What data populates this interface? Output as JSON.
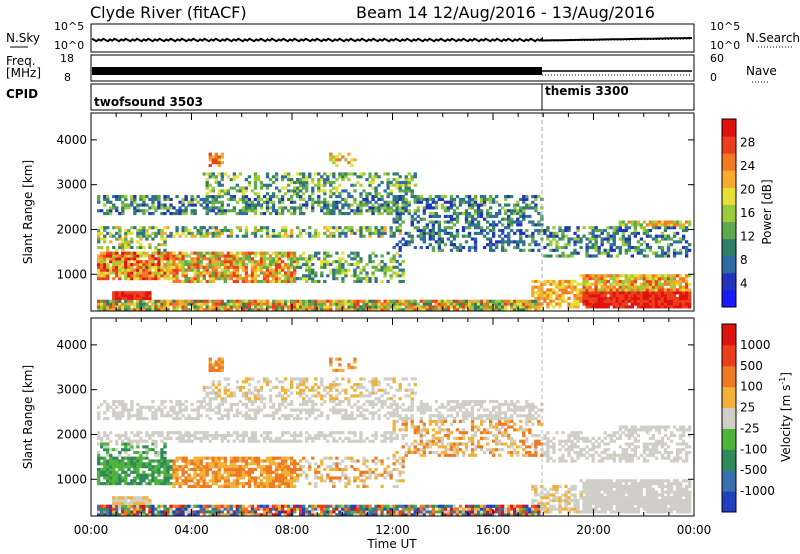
{
  "header": {
    "station": "Clyde River (fitACF)",
    "beam_date": "Beam 14  12/Aug/2016 - 13/Aug/2016"
  },
  "top_panels": {
    "nsky_label": "N.Sky",
    "nsky_tick_top": "10^5",
    "nsky_tick_bottom": "10^0",
    "nsearch_label": "N.Search",
    "nsearch_tick_top": "10^5",
    "nsearch_tick_bottom": "10^0",
    "freq_label_1": "Freq.",
    "freq_label_2": "[MHz]",
    "freq_tick_top": "18",
    "freq_tick_bottom": "8",
    "nave_label": "Nave",
    "nave_tick_top": "60",
    "nave_tick_bottom": "0",
    "cpid_label": "CPID",
    "cpid_segments": [
      {
        "name": "twofsound 3503",
        "start_hour": 0,
        "end_hour": 18.0
      },
      {
        "name": "themis 3300",
        "start_hour": 18.0,
        "end_hour": 24
      }
    ]
  },
  "chart_data": [
    {
      "type": "heatmap",
      "name": "Power",
      "ylabel": "Slant Range [km]",
      "yticks": [
        1000,
        2000,
        3000,
        4000
      ],
      "ylim": [
        180,
        4600
      ],
      "xlim_hours": [
        0,
        24
      ],
      "colorbar_label": "Power [dB]",
      "colorbar_ticks": [
        "28",
        "24",
        "20",
        "16",
        "12",
        "8",
        "4"
      ],
      "colors": [
        "#1a1aff",
        "#2233bb",
        "#2f6aa6",
        "#2f7f66",
        "#5ea84d",
        "#9acb3a",
        "#e6df35",
        "#f7ab2e",
        "#f27a22",
        "#ec3e1a",
        "#e0120f"
      ]
    },
    {
      "type": "heatmap",
      "name": "Velocity",
      "ylabel": "Slant Range [km]",
      "yticks": [
        1000,
        2000,
        3000,
        4000
      ],
      "ylim": [
        180,
        4600
      ],
      "xlim_hours": [
        0,
        24
      ],
      "colorbar_label": "Velocity [m s^-1]",
      "colorbar_ticks": [
        "1000",
        "500",
        "100",
        "25",
        "-25",
        "-100",
        "-500",
        "-1000"
      ],
      "colors": [
        "#2040c0",
        "#3a6fb0",
        "#2f8a5a",
        "#4fb33a",
        "#cfcfc8",
        "#f2b23a",
        "#ef7a22",
        "#ec3e1a",
        "#e0120f"
      ]
    }
  ],
  "xaxis": {
    "ticks": [
      "00:00",
      "04:00",
      "08:00",
      "12:00",
      "16:00",
      "20:00",
      "00:00"
    ],
    "label": "Time UT"
  }
}
